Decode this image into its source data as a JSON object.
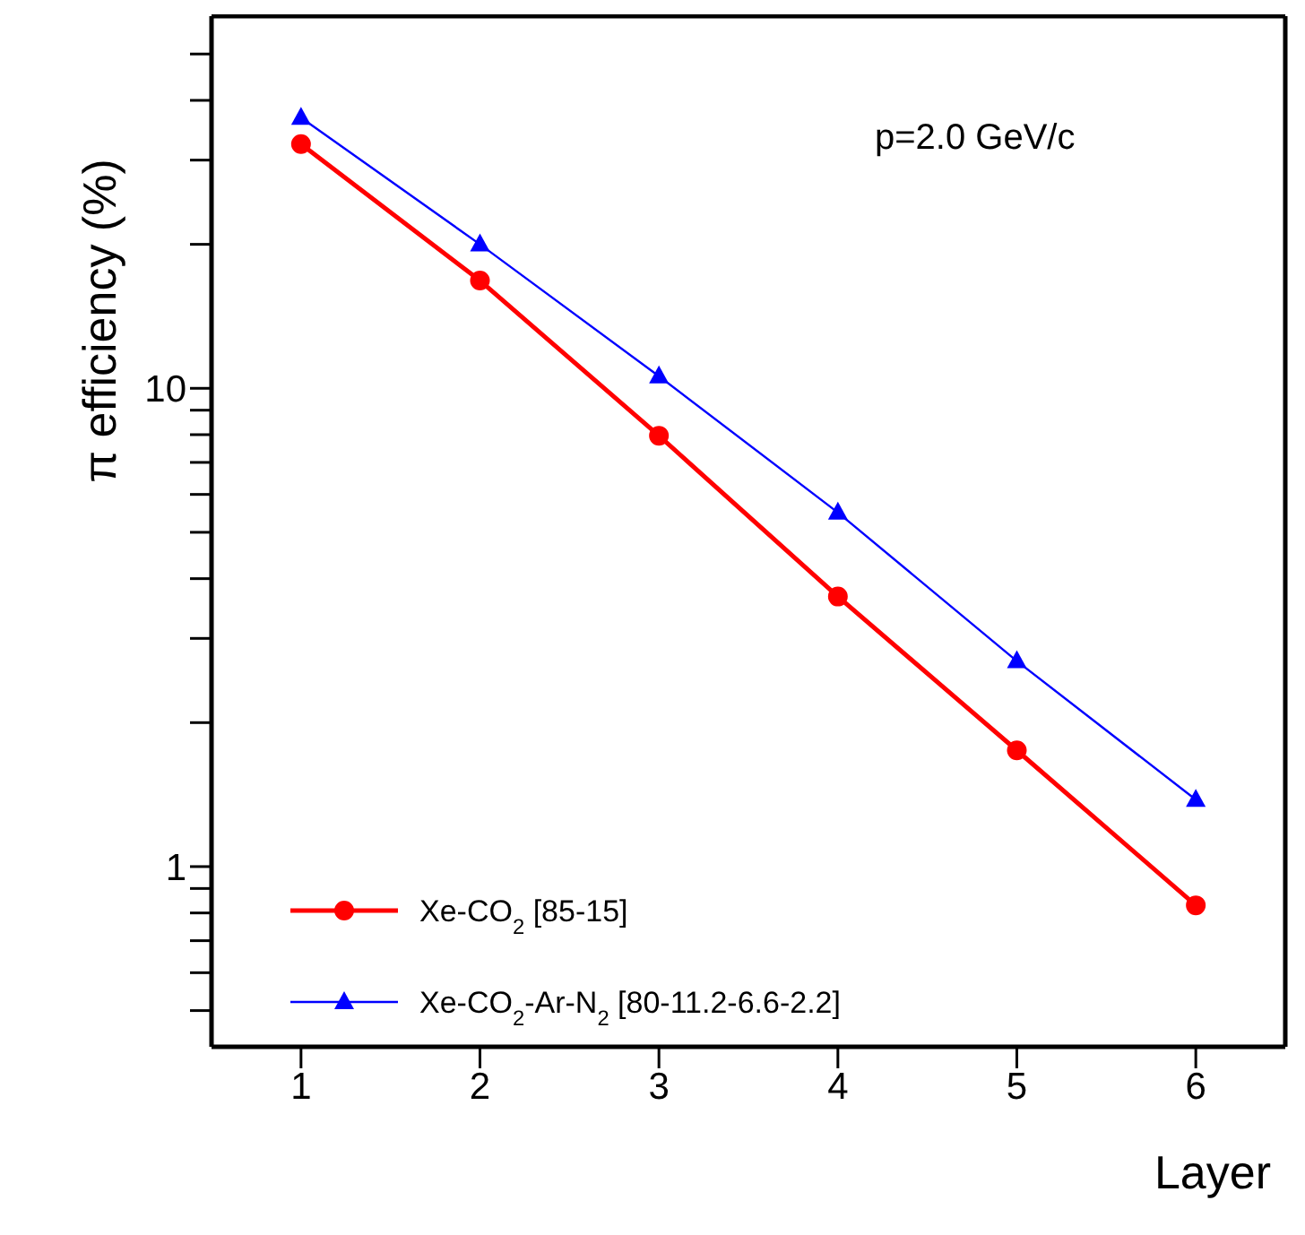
{
  "chart_data": {
    "type": "line",
    "xlabel": "Layer",
    "ylabel": "π efficiency (%)",
    "annotations": [
      "p=2.0 GeV/c"
    ],
    "x": [
      1,
      2,
      3,
      4,
      5,
      6
    ],
    "series": [
      {
        "name": "Xe-CO$_{2}$ [85-15]",
        "color": "#ff0000",
        "marker": "circle",
        "values": [
          32.4,
          16.8,
          7.96,
          3.67,
          1.75,
          0.83
        ]
      },
      {
        "name": "Xe-CO$_{2}$-Ar-N$_{2}$ [80-11.2-6.6-2.2]",
        "color": "#0000ff",
        "marker": "triangle",
        "values": [
          36.8,
          20.0,
          10.6,
          5.5,
          2.69,
          1.38
        ]
      }
    ],
    "xlim": [
      0.5,
      6.5
    ],
    "xticks": [
      1,
      2,
      3,
      4,
      5,
      6
    ],
    "ylim": [
      0.42,
      60
    ],
    "yticks": [
      {
        "value": 0.5,
        "label": null
      },
      {
        "value": 0.6,
        "label": null
      },
      {
        "value": 0.7,
        "label": null
      },
      {
        "value": 0.8,
        "label": null
      },
      {
        "value": 0.9,
        "label": null
      },
      1,
      {
        "value": 2,
        "label": null
      },
      {
        "value": 3,
        "label": null
      },
      {
        "value": 4,
        "label": null
      },
      {
        "value": 5,
        "label": null
      },
      {
        "value": 6,
        "label": null
      },
      {
        "value": 7,
        "label": null
      },
      {
        "value": 8,
        "label": null
      },
      {
        "value": 9,
        "label": null
      },
      10,
      {
        "value": 20,
        "label": null
      },
      {
        "value": 30,
        "label": null
      },
      {
        "value": 40,
        "label": null
      },
      {
        "value": 50,
        "label": null
      }
    ],
    "log": "y",
    "grid": false,
    "legend": "bottom left",
    "line_style": "solid"
  }
}
